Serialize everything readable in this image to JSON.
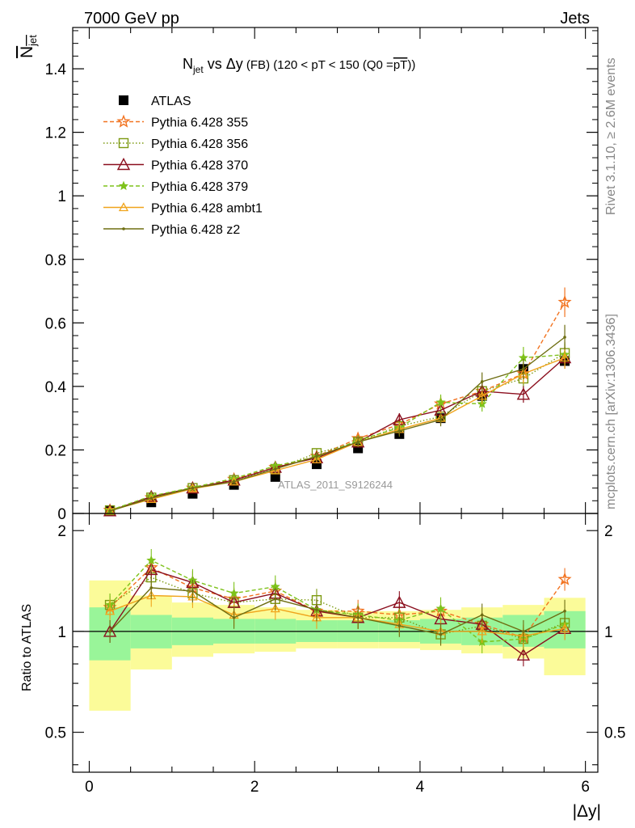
{
  "header": {
    "left_label": "7000 GeV pp",
    "right_label": "Jets"
  },
  "side_labels": {
    "rivet": "Rivet 3.1.10, ≥ 2.6M events",
    "mcplots": "mcplots.cern.ch [arXiv:1306.3436]"
  },
  "watermark": "ATLAS_2011_S9126244",
  "colors": {
    "atlas": "#000000",
    "p355": "#f27320",
    "p356": "#7d9a12",
    "p370": "#8b0f1e",
    "p379": "#7ec21b",
    "pambt1": "#f0a41c",
    "pz2": "#6e6e12",
    "band_green": "#99f599",
    "band_yellow": "#fbfb99"
  },
  "chart_data": [
    {
      "type": "line",
      "title_parts": {
        "n": "N",
        "jet_sub": "jet",
        "vs": " vs ",
        "dy": "Δy",
        "fb": " (FB) ",
        "range": "(120 < pT < 150 (Q0 =",
        "pt": "pT",
        "close": "))"
      },
      "ylabel_parts": {
        "n": "N",
        "jet_sub": "jet"
      },
      "xlabel": "|Δy|",
      "xlim": [
        -0.2,
        6.15
      ],
      "ylim": [
        0,
        1.53
      ],
      "x": [
        0.25,
        0.75,
        1.25,
        1.75,
        2.25,
        2.75,
        3.25,
        3.75,
        4.25,
        4.75,
        5.25,
        5.75
      ],
      "y_ticks": [
        "0",
        "0.2",
        "0.4",
        "0.6",
        "0.8",
        "1",
        "1.2",
        "1.4"
      ],
      "x_ticks": [
        "0",
        "2",
        "4",
        "6"
      ],
      "legend_position": "top-left",
      "series": [
        {
          "name": "ATLAS",
          "key": "atlas",
          "style": "marker",
          "values": [
            0.008,
            0.035,
            0.062,
            0.09,
            0.115,
            0.155,
            0.205,
            0.25,
            0.3,
            0.37,
            0.455,
            0.48
          ]
        },
        {
          "name": "Pythia 6.428 355",
          "key": "p355",
          "style": "dashed",
          "marker": "star-open",
          "values": [
            0.01,
            0.05,
            0.08,
            0.108,
            0.145,
            0.18,
            0.236,
            0.28,
            0.345,
            0.385,
            0.44,
            0.665
          ]
        },
        {
          "name": "Pythia 6.428 356",
          "key": "p356",
          "style": "dotted",
          "marker": "square-open",
          "values": [
            0.01,
            0.05,
            0.08,
            0.105,
            0.14,
            0.19,
            0.225,
            0.275,
            0.305,
            0.385,
            0.425,
            0.505
          ]
        },
        {
          "name": "Pythia 6.428 370",
          "key": "p370",
          "style": "solid",
          "marker": "triangle-open",
          "values": [
            0.008,
            0.053,
            0.08,
            0.105,
            0.145,
            0.175,
            0.225,
            0.295,
            0.325,
            0.385,
            0.375,
            0.49
          ]
        },
        {
          "name": "Pythia 6.428 379",
          "key": "p379",
          "style": "dashed",
          "marker": "star-filled",
          "values": [
            0.01,
            0.055,
            0.082,
            0.11,
            0.15,
            0.178,
            0.23,
            0.27,
            0.35,
            0.345,
            0.49,
            0.5
          ]
        },
        {
          "name": "Pythia 6.428 ambt1",
          "key": "pambt1",
          "style": "solid",
          "marker": "triangle-small",
          "values": [
            0.009,
            0.045,
            0.078,
            0.1,
            0.135,
            0.17,
            0.225,
            0.265,
            0.3,
            0.37,
            0.44,
            0.49
          ]
        },
        {
          "name": "Pythia 6.428 z2",
          "key": "pz2",
          "style": "solid",
          "marker": "dot",
          "values": [
            0.008,
            0.048,
            0.08,
            0.1,
            0.14,
            0.18,
            0.225,
            0.26,
            0.295,
            0.415,
            0.455,
            0.555
          ]
        }
      ]
    },
    {
      "type": "line",
      "ylabel": "Ratio to ATLAS",
      "xlim": [
        -0.2,
        6.15
      ],
      "ylim": [
        0.38,
        2.25
      ],
      "log_y": true,
      "right_ticks": [
        "2",
        "1",
        "0.5"
      ],
      "left_ticks": [
        "2",
        "1",
        "0.5"
      ],
      "x_edges": [
        0,
        0.5,
        1,
        1.5,
        2,
        2.5,
        3,
        3.5,
        4,
        4.5,
        5,
        5.5,
        6
      ],
      "band_green": {
        "low": [
          0.82,
          0.89,
          0.91,
          0.92,
          0.92,
          0.93,
          0.93,
          0.93,
          0.92,
          0.91,
          0.9,
          0.89
        ],
        "high": [
          1.18,
          1.12,
          1.1,
          1.09,
          1.09,
          1.08,
          1.08,
          1.08,
          1.09,
          1.1,
          1.12,
          1.15
        ]
      },
      "band_yellow": {
        "low": [
          0.58,
          0.77,
          0.84,
          0.86,
          0.87,
          0.89,
          0.89,
          0.89,
          0.88,
          0.86,
          0.83,
          0.74
        ],
        "high": [
          1.42,
          1.28,
          1.22,
          1.2,
          1.18,
          1.16,
          1.15,
          1.15,
          1.16,
          1.18,
          1.2,
          1.26
        ]
      },
      "series": [
        {
          "key": "p355",
          "values": [
            1.18,
            1.55,
            1.35,
            1.25,
            1.32,
            1.15,
            1.15,
            1.12,
            1.15,
            1.05,
            0.96,
            1.43
          ]
        },
        {
          "key": "p356",
          "values": [
            1.2,
            1.45,
            1.3,
            1.22,
            1.25,
            1.24,
            1.1,
            1.1,
            0.98,
            1.04,
            0.95,
            1.06
          ]
        },
        {
          "key": "p370",
          "values": [
            1.0,
            1.53,
            1.4,
            1.22,
            1.3,
            1.15,
            1.1,
            1.22,
            1.09,
            1.05,
            0.85,
            1.02
          ]
        },
        {
          "key": "p379",
          "values": [
            1.2,
            1.63,
            1.42,
            1.3,
            1.36,
            1.16,
            1.12,
            1.08,
            1.17,
            0.93,
            0.95,
            1.05
          ]
        },
        {
          "key": "pambt1",
          "values": [
            1.15,
            1.28,
            1.27,
            1.12,
            1.17,
            1.1,
            1.1,
            1.05,
            1.0,
            1.0,
            0.97,
            1.02
          ]
        },
        {
          "key": "pz2",
          "values": [
            1.0,
            1.35,
            1.32,
            1.1,
            1.25,
            1.16,
            1.1,
            1.04,
            0.98,
            1.12,
            1.0,
            1.15
          ]
        }
      ]
    }
  ]
}
